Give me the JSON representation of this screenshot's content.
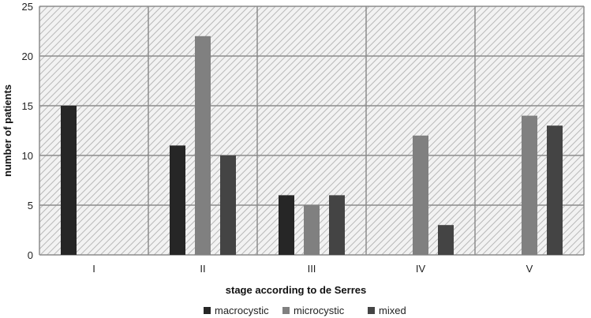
{
  "chart_data": {
    "type": "bar",
    "categories": [
      "I",
      "II",
      "III",
      "IV",
      "V"
    ],
    "series": [
      {
        "name": "macrocystic",
        "values": [
          15,
          11,
          6,
          0,
          0
        ],
        "color": "#262626"
      },
      {
        "name": "microcystic",
        "values": [
          0,
          22,
          5,
          12,
          14
        ],
        "color": "#808080"
      },
      {
        "name": "mixed",
        "values": [
          0,
          10,
          6,
          3,
          13
        ],
        "color": "#444444"
      }
    ],
    "xlabel": "stage according to de Serres",
    "ylabel": "number of patients",
    "ylim": [
      0,
      25
    ],
    "yticks": [
      0,
      5,
      10,
      15,
      20,
      25
    ],
    "grid": true,
    "legend_position": "bottom-center",
    "background_pattern": "diagonal-hatch"
  }
}
